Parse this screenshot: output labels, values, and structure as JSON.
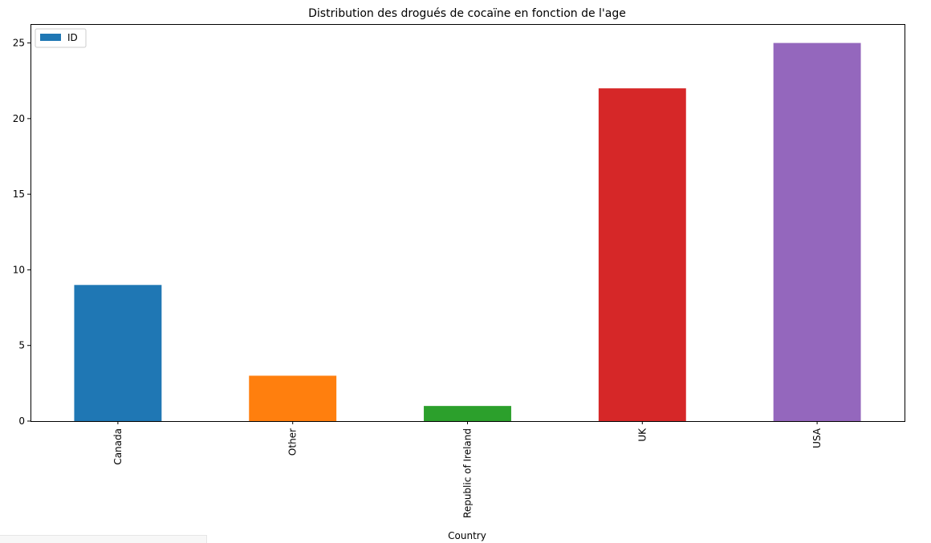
{
  "chart_data": {
    "type": "bar",
    "title": "Distribution des drogués de cocaïne en fonction de l'age",
    "xlabel": "Country",
    "ylabel": "",
    "categories": [
      "Canada",
      "Other",
      "Republic of Ireland",
      "UK",
      "USA"
    ],
    "series": [
      {
        "name": "ID",
        "values": [
          9,
          3,
          1,
          22,
          25
        ]
      }
    ],
    "bar_colors": [
      "#1f77b4",
      "#ff7f0e",
      "#2ca02c",
      "#d62728",
      "#9467bd"
    ],
    "legend_color": "#1f77b4",
    "ylim": [
      0,
      26.25
    ],
    "yticks": [
      0,
      5,
      10,
      15,
      20,
      25
    ],
    "grid": false,
    "legend_position": "top-left",
    "xtick_rotation": "vertical"
  }
}
